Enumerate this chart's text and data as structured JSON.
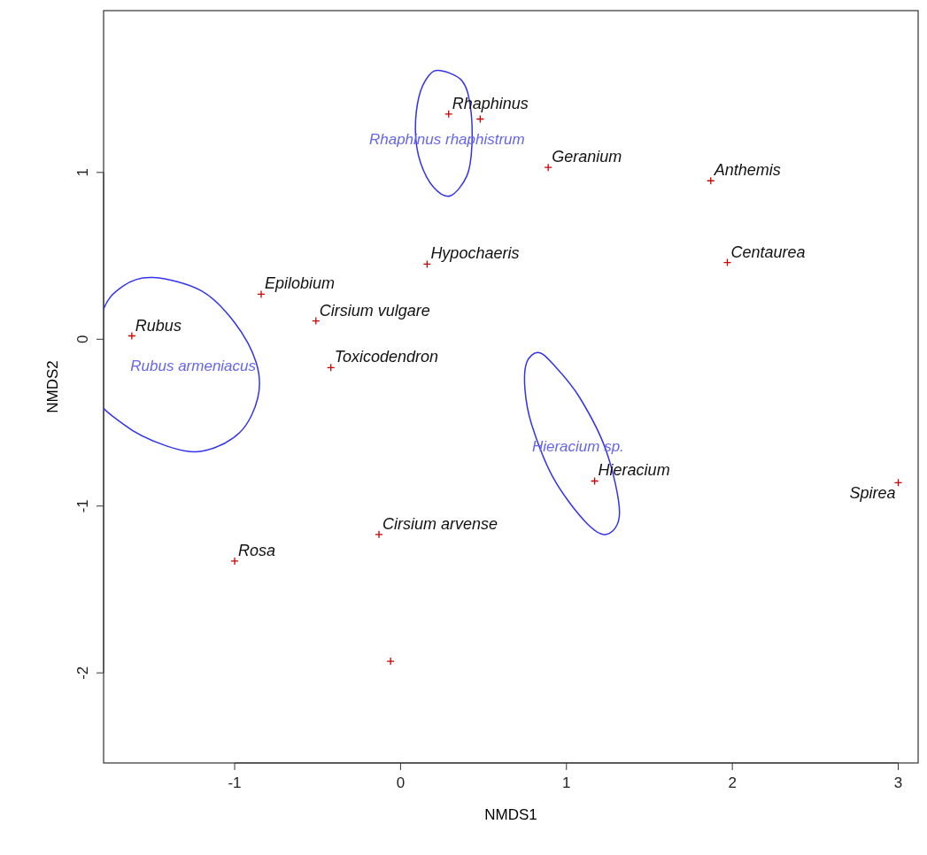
{
  "chart_data": {
    "type": "scatter",
    "xlabel": "NMDS1",
    "ylabel": "NMDS2",
    "xlim": [
      -1.79,
      3.12
    ],
    "ylim": [
      -2.54,
      1.97
    ],
    "xticks": [
      -1,
      0,
      1,
      2,
      3
    ],
    "yticks": [
      -2,
      -1,
      0,
      1
    ],
    "grid": false,
    "marker": "cross",
    "series": [
      {
        "color": "#cc0000",
        "x": [
          0.29,
          0.48,
          0.89,
          1.87,
          0.16,
          1.97,
          -0.84,
          -1.62,
          -0.51,
          -0.42,
          1.17,
          3.0,
          -0.13,
          -1.0,
          -0.06
        ],
        "values": [
          1.35,
          1.32,
          1.03,
          0.95,
          0.45,
          0.46,
          0.27,
          0.02,
          0.11,
          -0.17,
          -0.85,
          -0.86,
          -1.17,
          -1.33,
          -1.93
        ]
      }
    ],
    "annotations": [
      "Rhaphinus rhaphistrum",
      "Rubus armeniacus",
      "Hieracium sp.",
      {
        "text": "Rhaphinus",
        "x": 0.29,
        "y": 1.35
      },
      {
        "text": "Geranium",
        "x": 0.89,
        "y": 1.03
      },
      {
        "text": "Anthemis",
        "x": 1.87,
        "y": 0.95
      },
      {
        "text": "Hypochaeris",
        "x": 0.16,
        "y": 0.45
      },
      {
        "text": "Centaurea",
        "x": 1.97,
        "y": 0.46
      },
      {
        "text": "Epilobium",
        "x": -0.84,
        "y": 0.27
      },
      {
        "text": "Rubus",
        "x": -1.62,
        "y": 0.02
      },
      {
        "text": "Cirsium vulgare",
        "x": -0.51,
        "y": 0.11
      },
      {
        "text": "Toxicodendron",
        "x": -0.42,
        "y": -0.17
      },
      {
        "text": "Hieracium",
        "x": 1.17,
        "y": -0.85
      },
      {
        "text": "Spirea",
        "x": 3.0,
        "y": -0.86
      },
      {
        "text": "Cirsium arvense",
        "x": -0.13,
        "y": -1.17
      },
      {
        "text": "Rosa",
        "x": -1.0,
        "y": -1.33
      }
    ]
  }
}
